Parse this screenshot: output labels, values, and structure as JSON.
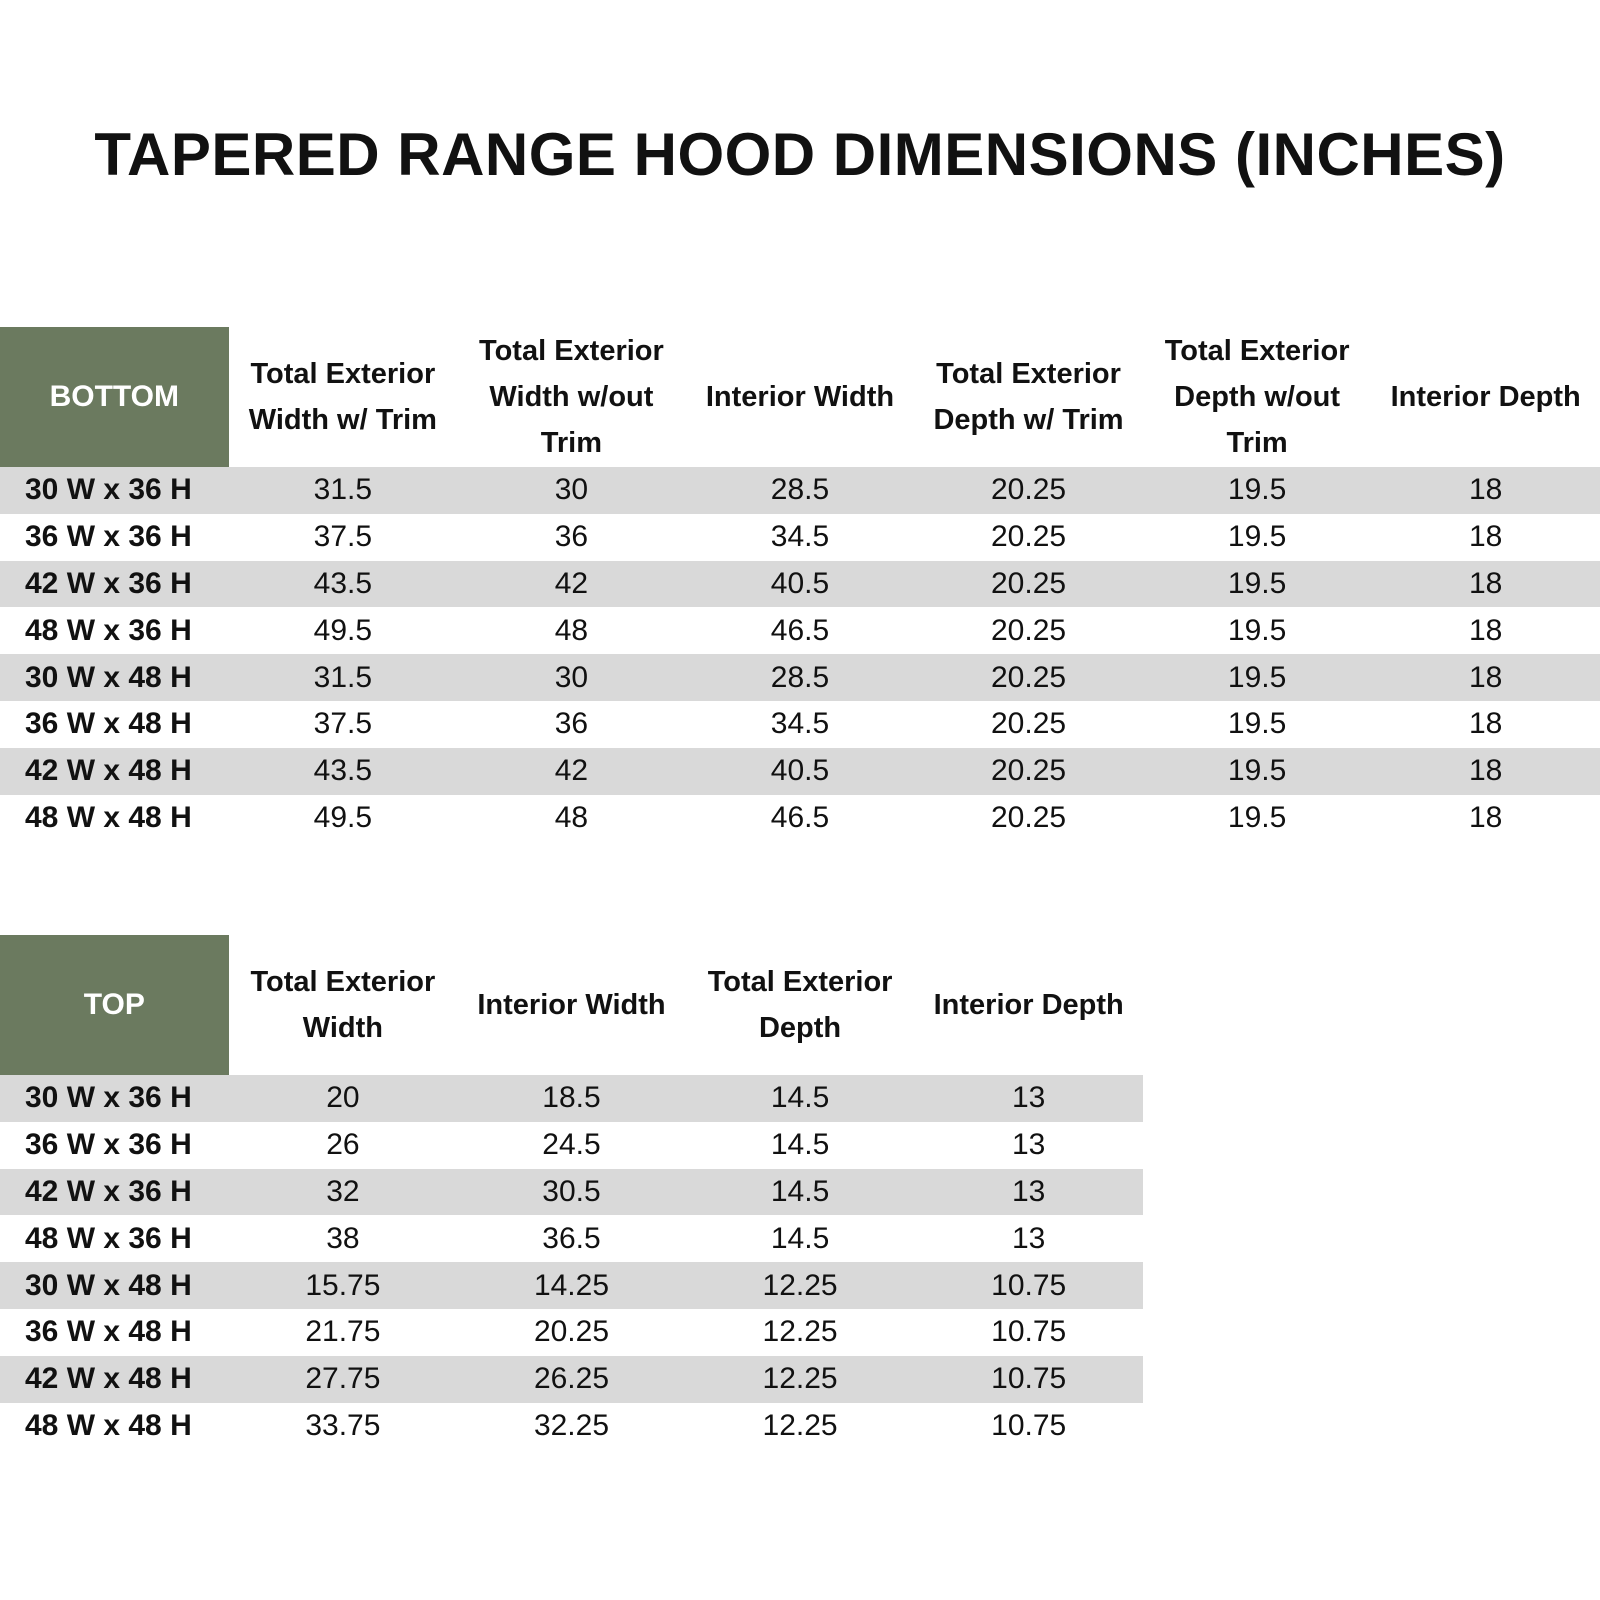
{
  "title": "TAPERED RANGE HOOD DIMENSIONS (INCHES)",
  "bottom_table": {
    "corner": "BOTTOM",
    "headers": [
      "Total Exterior Width w/ Trim",
      "Total Exterior Width w/out Trim",
      "Interior Width",
      "Total Exterior Depth w/ Trim",
      "Total Exterior Depth w/out Trim",
      "Interior Depth"
    ],
    "rows": [
      [
        "30 W x 36 H",
        "31.5",
        "30",
        "28.5",
        "20.25",
        "19.5",
        "18"
      ],
      [
        "36 W x 36 H",
        "37.5",
        "36",
        "34.5",
        "20.25",
        "19.5",
        "18"
      ],
      [
        "42 W x 36 H",
        "43.5",
        "42",
        "40.5",
        "20.25",
        "19.5",
        "18"
      ],
      [
        "48 W x 36 H",
        "49.5",
        "48",
        "46.5",
        "20.25",
        "19.5",
        "18"
      ],
      [
        "30 W x 48 H",
        "31.5",
        "30",
        "28.5",
        "20.25",
        "19.5",
        "18"
      ],
      [
        "36 W x 48 H",
        "37.5",
        "36",
        "34.5",
        "20.25",
        "19.5",
        "18"
      ],
      [
        "42 W x 48 H",
        "43.5",
        "42",
        "40.5",
        "20.25",
        "19.5",
        "18"
      ],
      [
        "48 W x 48 H",
        "49.5",
        "48",
        "46.5",
        "20.25",
        "19.5",
        "18"
      ]
    ]
  },
  "top_table": {
    "corner": "TOP",
    "headers": [
      "Total Exterior Width",
      "Interior Width",
      "Total Exterior Depth",
      "Interior Depth"
    ],
    "rows": [
      [
        "30 W x 36 H",
        "20",
        "18.5",
        "14.5",
        "13"
      ],
      [
        "36 W x 36 H",
        "26",
        "24.5",
        "14.5",
        "13"
      ],
      [
        "42 W x 36 H",
        "32",
        "30.5",
        "14.5",
        "13"
      ],
      [
        "48 W x 36 H",
        "38",
        "36.5",
        "14.5",
        "13"
      ],
      [
        "30 W x 48 H",
        "15.75",
        "14.25",
        "12.25",
        "10.75"
      ],
      [
        "36 W x 48 H",
        "21.75",
        "20.25",
        "12.25",
        "10.75"
      ],
      [
        "42 W x 48 H",
        "27.75",
        "26.25",
        "12.25",
        "10.75"
      ],
      [
        "48 W x 48 H",
        "33.75",
        "32.25",
        "12.25",
        "10.75"
      ]
    ]
  }
}
